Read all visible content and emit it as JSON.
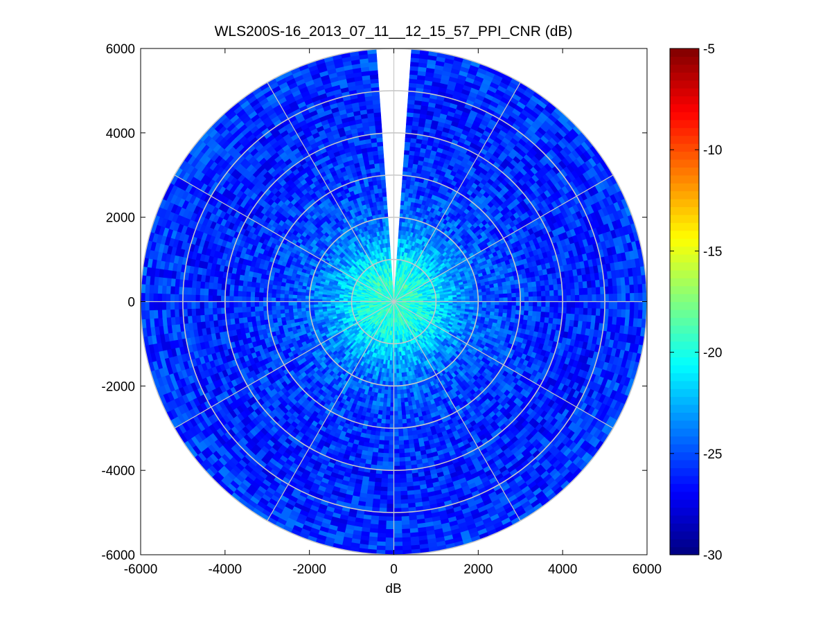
{
  "chart_data": {
    "type": "heatmap",
    "subtype": "polar-ppi",
    "title": "WLS200S-16_2013_07_11__12_15_57_PPI_CNR (dB)",
    "xlabel": "dB",
    "ylabel": "",
    "xlim": [
      -6000,
      6000
    ],
    "ylim": [
      -6000,
      6000
    ],
    "xticks": [
      -6000,
      -4000,
      -2000,
      0,
      2000,
      4000,
      6000
    ],
    "yticks": [
      -6000,
      -4000,
      -2000,
      0,
      2000,
      4000,
      6000
    ],
    "xtick_labels": [
      "-6000",
      "-4000",
      "-2000",
      "0",
      "2000",
      "4000",
      "6000"
    ],
    "ytick_labels": [
      "6000",
      "4000",
      "2000",
      "0",
      "-2000",
      "-4000",
      "-6000"
    ],
    "max_range": 6000,
    "range_rings": [
      1000,
      2000,
      3000,
      4000,
      5000,
      6000
    ],
    "spoke_angles_deg": [
      0,
      30,
      60,
      90,
      120,
      150,
      180,
      210,
      240,
      270,
      300,
      330
    ],
    "gap_sector_deg": [
      -4,
      4
    ],
    "colorbar": {
      "min": -30,
      "max": -5,
      "ticks": [
        -5,
        -10,
        -15,
        -20,
        -25,
        -30
      ],
      "tick_labels": [
        "-5",
        "-10",
        "-15",
        "-20",
        "-25",
        "-30"
      ],
      "colormap": "jet"
    },
    "cnr_profile": {
      "range_m": [
        0,
        500,
        1000,
        1500,
        2000,
        3000,
        4000,
        5000,
        6000
      ],
      "cnr_db": [
        -19.5,
        -19.5,
        -21,
        -23,
        -24.5,
        -25.5,
        -26,
        -26,
        -25.5
      ]
    },
    "grid": true,
    "grid_color": "#c8c8c8"
  }
}
